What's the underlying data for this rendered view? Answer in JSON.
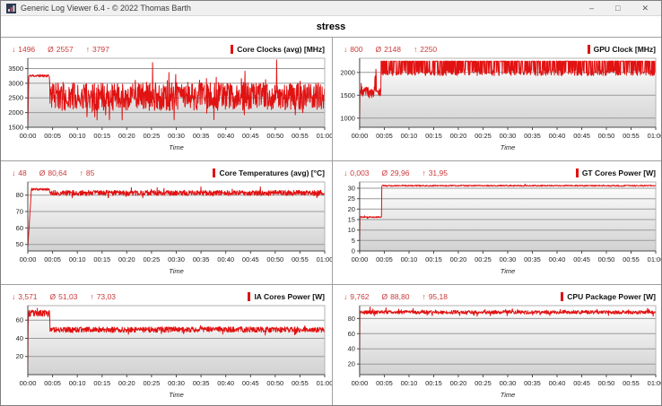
{
  "window": {
    "title": "Generic Log Viewer 6.4 - © 2022 Thomas Barth",
    "controls": {
      "minimize": "–",
      "maximize": "□",
      "close": "✕"
    }
  },
  "header": {
    "title": "stress"
  },
  "symbols": {
    "min": "↓",
    "avg": "Ø",
    "max": "↑"
  },
  "colors": {
    "line": "#e11212",
    "stats_text": "#cb3a3a",
    "legend_bar": "#e11212",
    "gridline": "#999999",
    "axis": "#4a4a4a",
    "plot_border": "#b3b3b3",
    "area_fill_top": "#ffffff",
    "area_fill_bottom": "#d2d2d2",
    "divider": "#9f9f9f",
    "titlebar_bg": "#f0f0f0"
  },
  "chart_data": [
    {
      "type": "area",
      "title": "Core Clocks (avg) [MHz]",
      "stats": {
        "min": "1496",
        "avg": "2557",
        "max": "3797"
      },
      "xlabel": "Time",
      "x_ticks": [
        "00:00",
        "00:05",
        "00:10",
        "00:15",
        "00:20",
        "00:25",
        "00:30",
        "00:35",
        "00:40",
        "00:45",
        "00:50",
        "00:55",
        "01:00"
      ],
      "x_range_minutes": [
        0,
        60
      ],
      "y_ticks": [
        1500,
        2000,
        2500,
        3000,
        3500
      ],
      "y_range": [
        1500,
        3850
      ],
      "grid": true,
      "legend_position": "top-right",
      "seed": 11,
      "segments": [
        {
          "t0": 0,
          "t1": 0.2,
          "mode": "ramp",
          "v0": 1496,
          "v1": 3230
        },
        {
          "t0": 0.2,
          "t1": 4.4,
          "mode": "flat",
          "base": 3255,
          "amp": 45
        },
        {
          "t0": 4.4,
          "t1": 4.55,
          "mode": "ramp",
          "v0": 3255,
          "v1": 1650
        },
        {
          "t0": 4.55,
          "t1": 60,
          "mode": "flat",
          "base": 2550,
          "amp": 480,
          "spike_p": 0.1,
          "spike_amp": 500,
          "clamp": [
            1750,
            3797
          ]
        }
      ],
      "peaks": [
        {
          "t": 50.3,
          "v": 3797
        },
        {
          "t": 25.2,
          "v": 3700
        },
        {
          "t": 37.6,
          "v": 1760
        }
      ]
    },
    {
      "type": "area",
      "title": "GPU Clock [MHz]",
      "stats": {
        "min": "800",
        "avg": "2148",
        "max": "2250"
      },
      "xlabel": "Time",
      "x_ticks": [
        "00:00",
        "00:05",
        "00:10",
        "00:15",
        "00:20",
        "00:25",
        "00:30",
        "00:35",
        "00:40",
        "00:45",
        "00:50",
        "00:55",
        "01:00"
      ],
      "x_range_minutes": [
        0,
        60
      ],
      "y_ticks": [
        1000,
        1500,
        2000
      ],
      "y_range": [
        800,
        2310
      ],
      "grid": true,
      "legend_position": "top-right",
      "seed": 23,
      "segments": [
        {
          "t0": 0,
          "t1": 0.06,
          "mode": "ramp",
          "v0": 800,
          "v1": 1520
        },
        {
          "t0": 0.06,
          "t1": 3.1,
          "mode": "flat",
          "base": 1580,
          "amp": 110,
          "spike_p": 0.05,
          "spike_amp": 260,
          "clamp": [
            1440,
            2070
          ]
        },
        {
          "t0": 3.1,
          "t1": 3.4,
          "mode": "flat",
          "base": 1750,
          "amp": 250,
          "clamp": [
            1450,
            2070
          ]
        },
        {
          "t0": 3.4,
          "t1": 4.3,
          "mode": "flat",
          "base": 1560,
          "amp": 90
        },
        {
          "t0": 4.3,
          "t1": 60,
          "mode": "comb",
          "top": 2250,
          "top_jitter": 8,
          "low": 1990,
          "low_amp": 60,
          "p_top": 0.52
        }
      ],
      "peaks": [
        {
          "t": 3.3,
          "v": 2070
        }
      ]
    },
    {
      "type": "area",
      "title": "Core Temperatures (avg) [°C]",
      "stats": {
        "min": "48",
        "avg": "80,64",
        "max": "85"
      },
      "xlabel": "Time",
      "x_ticks": [
        "00:00",
        "00:05",
        "00:10",
        "00:15",
        "00:20",
        "00:25",
        "00:30",
        "00:35",
        "00:40",
        "00:45",
        "00:50",
        "00:55",
        "01:00"
      ],
      "x_range_minutes": [
        0,
        60
      ],
      "y_ticks": [
        50,
        60,
        70,
        80
      ],
      "y_range": [
        46,
        88
      ],
      "grid": true,
      "legend_position": "top-right",
      "seed": 37,
      "segments": [
        {
          "t0": 0,
          "t1": 0.7,
          "mode": "ramp",
          "v0": 48,
          "v1": 82.5
        },
        {
          "t0": 0.7,
          "t1": 4.4,
          "mode": "flat",
          "base": 83.5,
          "amp": 0.7
        },
        {
          "t0": 4.4,
          "t1": 60,
          "mode": "flat",
          "base": 81.3,
          "amp": 1.6,
          "spike_p": 0.06,
          "spike_amp": 2.2,
          "clamp": [
            78.4,
            85
          ]
        }
      ],
      "peaks": [
        {
          "t": 35.0,
          "v": 85
        },
        {
          "t": 47.0,
          "v": 85
        }
      ]
    },
    {
      "type": "area",
      "title": "GT Cores Power [W]",
      "stats": {
        "min": "0,003",
        "avg": "29,96",
        "max": "31,95"
      },
      "xlabel": "Time",
      "x_ticks": [
        "00:00",
        "00:05",
        "00:10",
        "00:15",
        "00:20",
        "00:25",
        "00:30",
        "00:35",
        "00:40",
        "00:45",
        "00:50",
        "00:55",
        "01:00"
      ],
      "x_range_minutes": [
        0,
        60
      ],
      "y_ticks": [
        0,
        5,
        10,
        15,
        20,
        25,
        30
      ],
      "y_range": [
        0,
        33
      ],
      "grid": true,
      "legend_position": "top-right",
      "seed": 41,
      "segments": [
        {
          "t0": 0,
          "t1": 0.07,
          "mode": "ramp",
          "v0": 0.003,
          "v1": 16
        },
        {
          "t0": 0.07,
          "t1": 4.45,
          "mode": "flat",
          "base": 16.2,
          "amp": 0.3,
          "spike_p": 0.05,
          "spike_amp": 1.0,
          "clamp": [
            15.5,
            17.8
          ]
        },
        {
          "t0": 4.45,
          "t1": 60,
          "mode": "flat",
          "base": 31.2,
          "amp": 0.3,
          "clamp": [
            30.3,
            31.95
          ]
        }
      ],
      "peaks": [
        {
          "t": 33.5,
          "v": 31.95
        }
      ]
    },
    {
      "type": "area",
      "title": "IA Cores Power [W]",
      "stats": {
        "min": "3,571",
        "avg": "51,03",
        "max": "73,03"
      },
      "xlabel": "Time",
      "x_ticks": [
        "00:00",
        "00:05",
        "00:10",
        "00:15",
        "00:20",
        "00:25",
        "00:30",
        "00:35",
        "00:40",
        "00:45",
        "00:50",
        "00:55",
        "01:00"
      ],
      "x_range_minutes": [
        0,
        60
      ],
      "y_ticks": [
        20,
        40,
        60
      ],
      "y_range": [
        0,
        76
      ],
      "grid": true,
      "legend_position": "top-right",
      "seed": 53,
      "segments": [
        {
          "t0": 0,
          "t1": 0.08,
          "mode": "ramp",
          "v0": 3.571,
          "v1": 64
        },
        {
          "t0": 0.08,
          "t1": 4.45,
          "mode": "flat",
          "base": 67.5,
          "amp": 3.6,
          "clamp": [
            59,
            73.03
          ]
        },
        {
          "t0": 4.45,
          "t1": 60,
          "mode": "flat",
          "base": 49.6,
          "amp": 3.0,
          "spike_p": 0.05,
          "spike_amp": 4,
          "clamp": [
            43.5,
            58
          ]
        }
      ],
      "peaks": [
        {
          "t": 1.9,
          "v": 73.03
        }
      ]
    },
    {
      "type": "area",
      "title": "CPU Package Power [W]",
      "stats": {
        "min": "9,762",
        "avg": "88,80",
        "max": "95,18"
      },
      "xlabel": "Time",
      "x_ticks": [
        "00:00",
        "00:05",
        "00:10",
        "00:15",
        "00:20",
        "00:25",
        "00:30",
        "00:35",
        "00:40",
        "00:45",
        "00:50",
        "00:55",
        "01:00"
      ],
      "x_range_minutes": [
        0,
        60
      ],
      "y_ticks": [
        20,
        40,
        60,
        80
      ],
      "y_range": [
        6,
        97
      ],
      "grid": true,
      "legend_position": "top-right",
      "seed": 67,
      "segments": [
        {
          "t0": 0,
          "t1": 0.06,
          "mode": "ramp",
          "v0": 9.762,
          "v1": 87
        },
        {
          "t0": 0.06,
          "t1": 60,
          "mode": "flat",
          "base": 88.3,
          "amp": 2.3,
          "spike_p": 0.08,
          "spike_amp": 4.0,
          "clamp": [
            82,
            95.18
          ]
        }
      ],
      "peaks": [
        {
          "t": 2.1,
          "v": 95.18
        }
      ]
    }
  ]
}
